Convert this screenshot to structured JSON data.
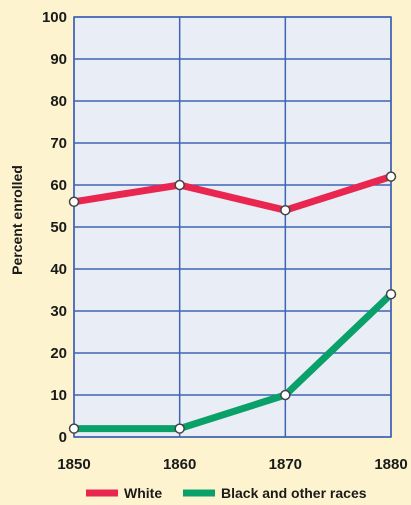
{
  "chart_data": {
    "type": "line",
    "x": [
      "1850",
      "1860",
      "1870",
      "1880"
    ],
    "ylabel": "Percent enrolled",
    "xlabel": "",
    "ylim": [
      0,
      100
    ],
    "yticks": [
      "0",
      "10",
      "20",
      "30",
      "40",
      "50",
      "60",
      "70",
      "80",
      "90",
      "100"
    ],
    "grid": true,
    "legend_position": "bottom",
    "series": [
      {
        "name": "White",
        "values": [
          56,
          60,
          54,
          62
        ],
        "color": "#e8264f"
      },
      {
        "name": "Black and other races",
        "values": [
          2,
          2,
          10,
          34
        ],
        "color": "#0aa06a"
      }
    ]
  },
  "colors": {
    "background": "#fdf4cf",
    "plot_background": "#e9eef6",
    "grid": "#3f63b5"
  }
}
